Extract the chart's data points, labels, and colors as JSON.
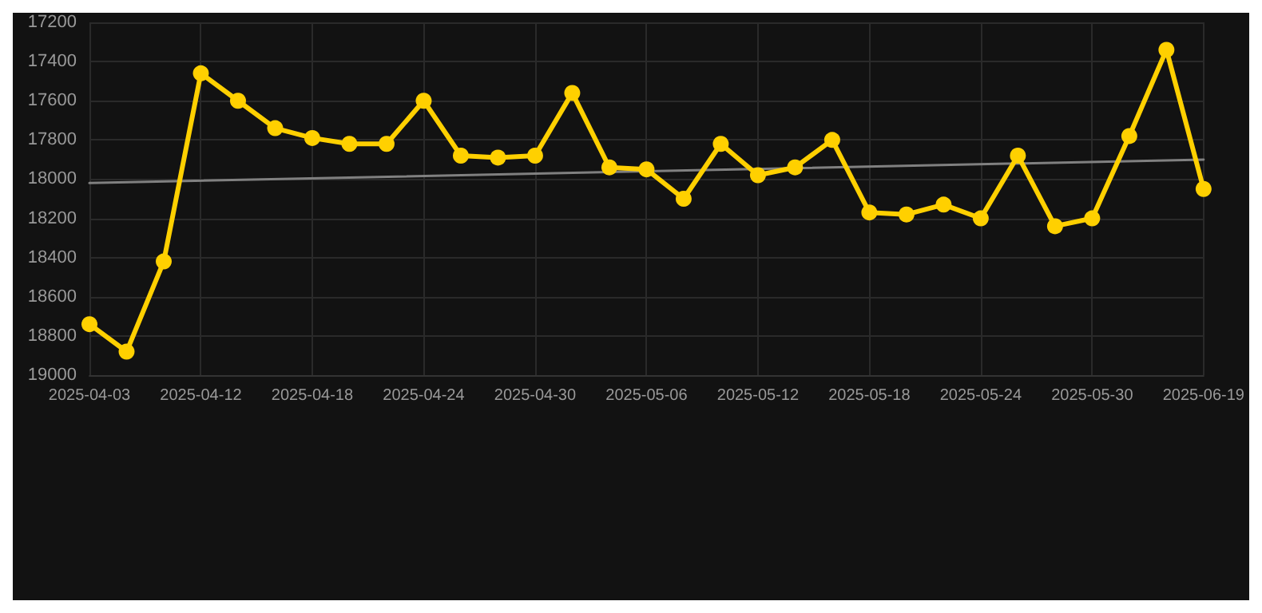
{
  "chart_data": {
    "type": "line",
    "categories": [
      "2025-04-03",
      null,
      null,
      "2025-04-12",
      null,
      null,
      "2025-04-18",
      null,
      null,
      "2025-04-24",
      null,
      null,
      "2025-04-30",
      null,
      null,
      "2025-05-06",
      null,
      null,
      "2025-05-12",
      null,
      null,
      "2025-05-18",
      null,
      null,
      "2025-05-24",
      null,
      null,
      "2025-05-30",
      null,
      null,
      "2025-06-19"
    ],
    "series": [
      {
        "color": "#ffd000",
        "marker": "circle",
        "values": [
          18740,
          18880,
          18420,
          17460,
          17600,
          17740,
          17790,
          17820,
          17820,
          17600,
          17880,
          17890,
          17880,
          17560,
          17940,
          17950,
          18100,
          17820,
          17980,
          17940,
          17800,
          18170,
          18180,
          18130,
          18200,
          17880,
          18240,
          18200,
          17780,
          17340,
          18050
        ]
      },
      {
        "color": "#808080",
        "marker": "none",
        "values": [
          18020,
          null,
          null,
          null,
          null,
          null,
          null,
          null,
          null,
          null,
          null,
          null,
          null,
          null,
          null,
          null,
          null,
          null,
          null,
          null,
          null,
          null,
          null,
          null,
          null,
          null,
          null,
          null,
          null,
          null,
          17900
        ]
      }
    ],
    "ylim": [
      19000,
      17200
    ],
    "yticks": [
      17200,
      17400,
      17600,
      17800,
      18000,
      18200,
      18400,
      18600,
      18800,
      19000
    ],
    "grid": true,
    "line_style": "solid"
  }
}
